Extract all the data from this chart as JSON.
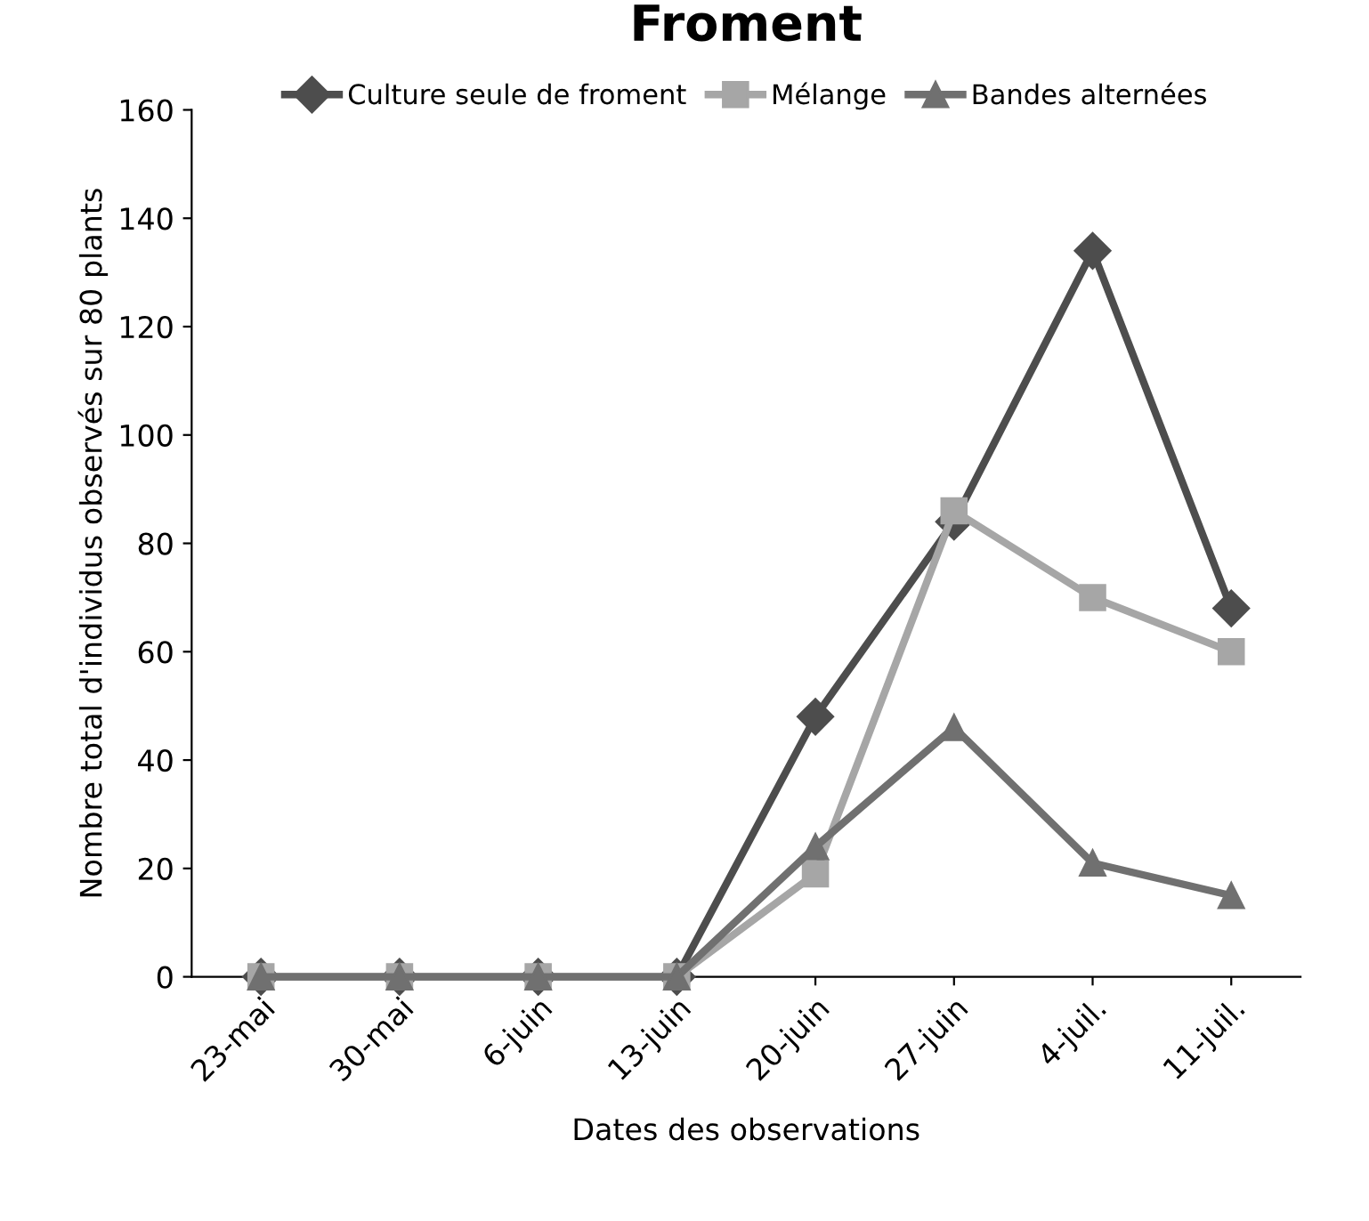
{
  "chart_data": {
    "type": "line",
    "title": "Froment",
    "xlabel": "Dates des observations",
    "ylabel": "Nombre total d'individus observés sur 80 plants",
    "categories": [
      "23-mai",
      "30-mai",
      "6-juin",
      "13-juin",
      "20-juin",
      "27-juin",
      "4-juil.",
      "11-juil."
    ],
    "series": [
      {
        "name": "Culture seule de froment",
        "color": "#4d4d4d",
        "marker": "diamond",
        "values": [
          0,
          0,
          0,
          0,
          48,
          84,
          134,
          68
        ]
      },
      {
        "name": "Mélange",
        "color": "#a6a6a6",
        "marker": "square",
        "values": [
          0,
          0,
          0,
          0,
          19,
          86,
          70,
          60
        ]
      },
      {
        "name": "Bandes alternées",
        "color": "#707070",
        "marker": "triangle",
        "values": [
          0,
          0,
          0,
          0,
          24,
          46,
          21,
          15
        ]
      }
    ],
    "ylim": [
      0,
      160
    ],
    "yticks": [
      0,
      20,
      40,
      60,
      80,
      100,
      120,
      140,
      160
    ],
    "grid": false,
    "legend": "top"
  }
}
